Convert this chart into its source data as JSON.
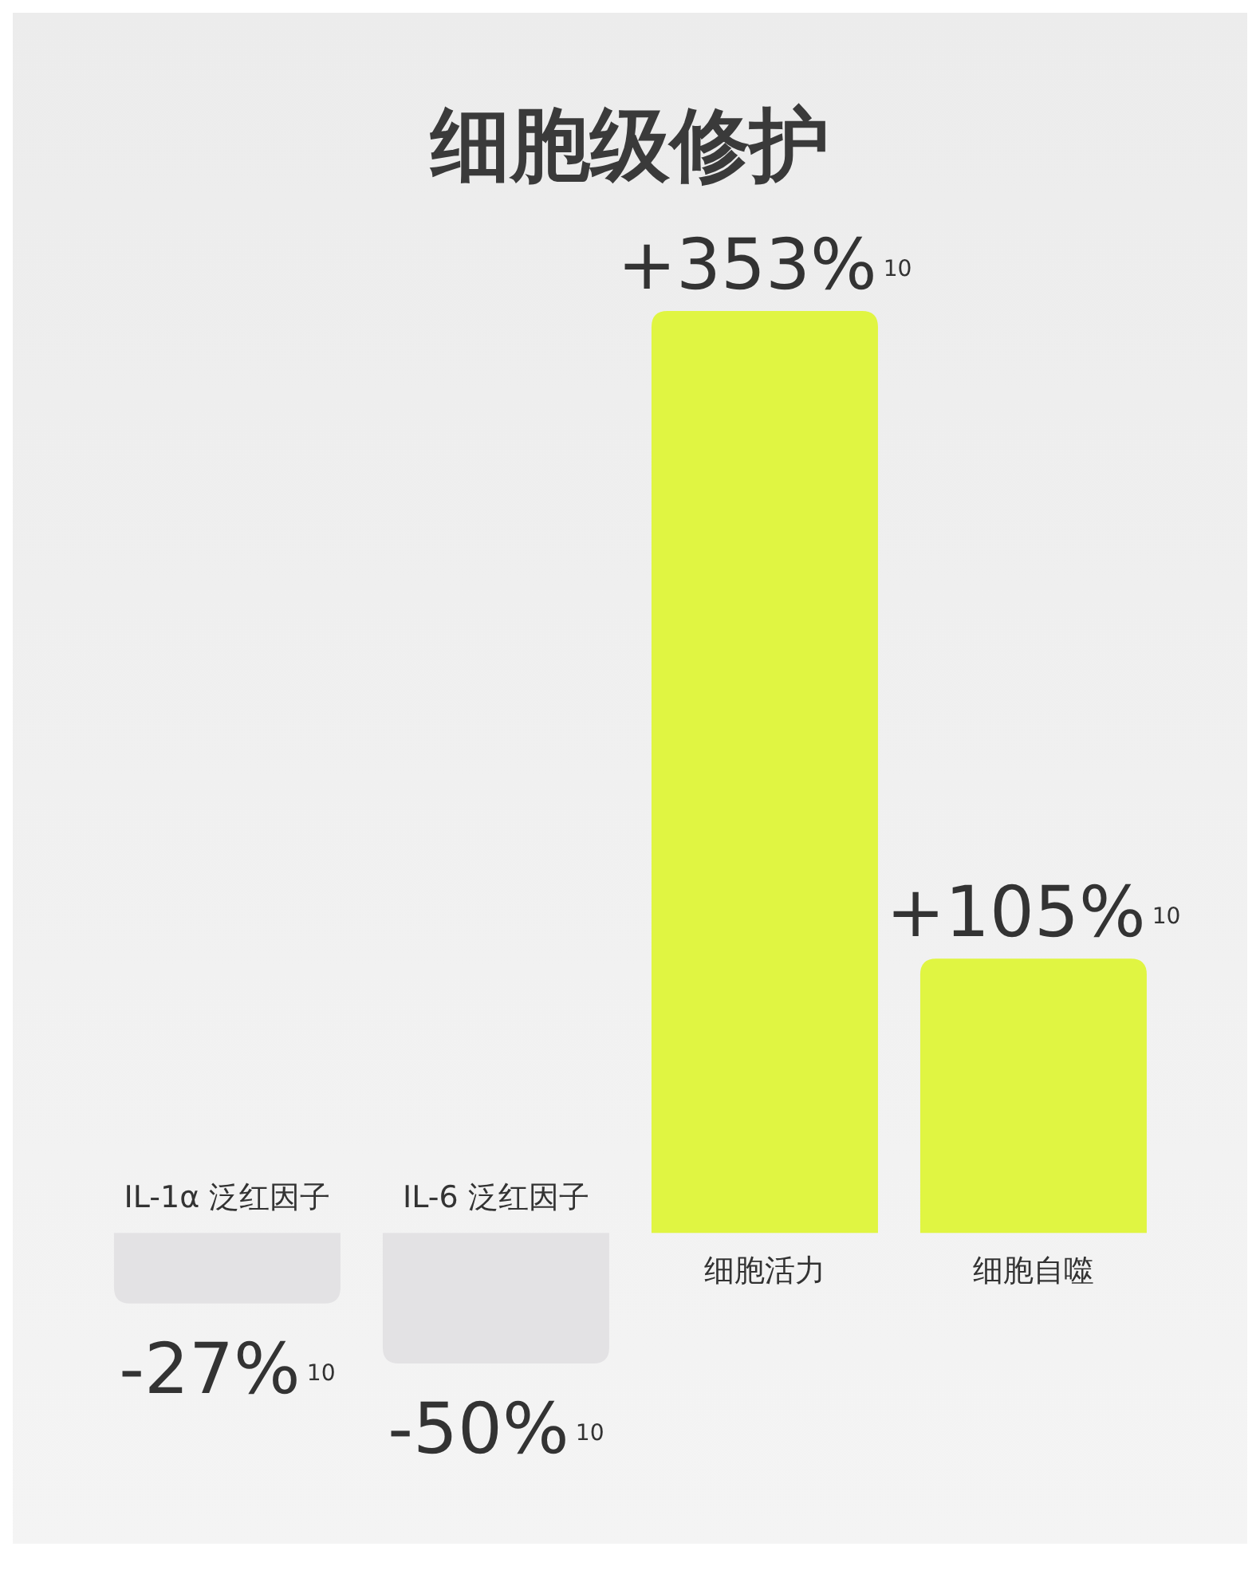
{
  "chart_data": {
    "type": "bar",
    "title": "细胞级修护",
    "categories": [
      "IL-1α 泛红因子",
      "IL-6 泛红因子",
      "细胞活力",
      "细胞自噬"
    ],
    "values": [
      -27,
      -50,
      353,
      105
    ],
    "colors": [
      "#e3e2e4",
      "#e3e2e4",
      "#e0f542",
      "#e0f542"
    ],
    "value_labels": [
      "-27%$^{10}$",
      "-50%$^{10}$",
      "+353%$^{10}$",
      "+105%$^{10}$"
    ]
  }
}
